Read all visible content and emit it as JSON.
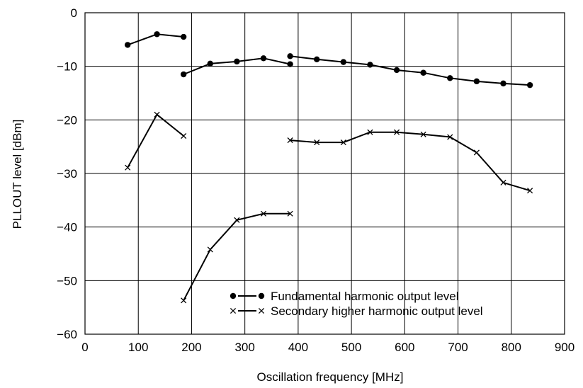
{
  "chart_data": {
    "type": "line",
    "xlabel": "Oscillation frequency [MHz]",
    "ylabel": "PLLOUT level [dBm]",
    "xlim": [
      0,
      900
    ],
    "ylim": [
      -60,
      0
    ],
    "xticks": [
      0,
      100,
      200,
      300,
      400,
      500,
      600,
      700,
      800,
      900
    ],
    "yticks": [
      0,
      -10,
      -20,
      -30,
      -40,
      -50,
      -60
    ],
    "xtick_labels": [
      "0",
      "100",
      "200",
      "300",
      "400",
      "500",
      "600",
      "700",
      "800",
      "900"
    ],
    "ytick_labels": [
      "0",
      "−10",
      "−20",
      "−30",
      "−40",
      "−50",
      "−60"
    ],
    "grid": true,
    "legend_position": "bottom-center",
    "series": [
      {
        "name": "Fundamental harmonic output level",
        "marker": "dot",
        "legend_symbol": "● — ●",
        "segments": [
          [
            [
              80,
              -6.0
            ],
            [
              135,
              -4.0
            ],
            [
              185,
              -4.5
            ]
          ],
          [
            [
              185,
              -11.5
            ],
            [
              235,
              -9.5
            ],
            [
              285,
              -9.1
            ],
            [
              335,
              -8.5
            ],
            [
              385,
              -9.6
            ]
          ],
          [
            [
              385,
              -8.1
            ],
            [
              435,
              -8.7
            ],
            [
              485,
              -9.2
            ],
            [
              535,
              -9.7
            ],
            [
              585,
              -10.7
            ],
            [
              635,
              -11.2
            ],
            [
              685,
              -12.2
            ],
            [
              735,
              -12.8
            ],
            [
              785,
              -13.2
            ],
            [
              835,
              -13.5
            ]
          ]
        ]
      },
      {
        "name": "Secondary higher harmonic output level",
        "marker": "cross",
        "legend_symbol": "× — ×",
        "segments": [
          [
            [
              80,
              -28.9
            ],
            [
              135,
              -19.0
            ],
            [
              185,
              -23.0
            ]
          ],
          [
            [
              185,
              -53.7
            ],
            [
              235,
              -44.2
            ],
            [
              285,
              -38.7
            ],
            [
              335,
              -37.5
            ],
            [
              385,
              -37.5
            ]
          ],
          [
            [
              385,
              -23.8
            ],
            [
              435,
              -24.2
            ],
            [
              485,
              -24.2
            ],
            [
              535,
              -22.3
            ],
            [
              585,
              -22.3
            ],
            [
              635,
              -22.7
            ],
            [
              685,
              -23.2
            ],
            [
              735,
              -26.1
            ],
            [
              785,
              -31.7
            ],
            [
              835,
              -33.2
            ]
          ]
        ]
      }
    ]
  }
}
